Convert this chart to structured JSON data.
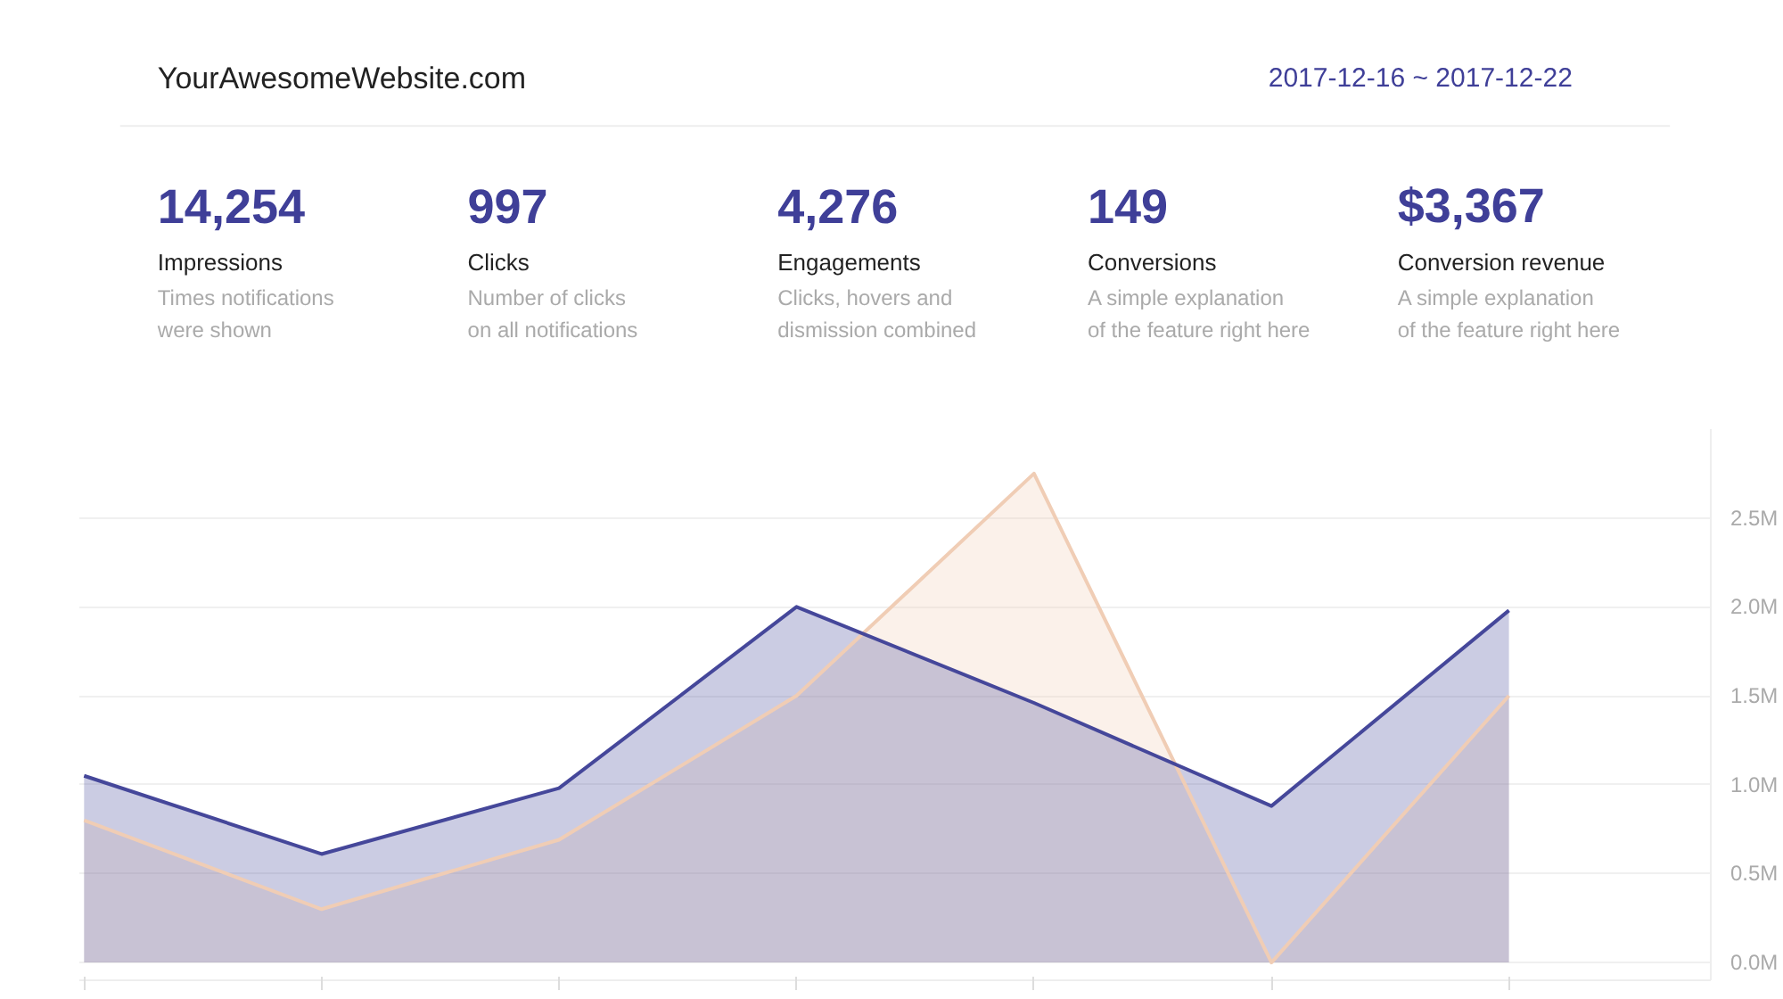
{
  "chart_data": [
    {
      "type": "other",
      "title": "YourAwesomeWebsite.com",
      "subtitle": "2017-12-16 ~ 2017-12-22",
      "annotations": [
        "14,254",
        "Impressions",
        "Times notifications\nwere shown",
        "997",
        "Clicks",
        "Number of clicks\non all notifications",
        "4,276",
        "Engagements",
        "Clicks, hovers and\ndismission combined",
        "149",
        "Conversions",
        "A simple explanation\nof the feature right here",
        "$3,367",
        "Conversion revenue",
        "A simple explanation\nof the feature right here"
      ]
    },
    {
      "type": "area",
      "categories": [
        null,
        null,
        null,
        null,
        null,
        null,
        null
      ],
      "series": [
        {
          "color": "#f0cdb5",
          "values": [
            0.8,
            0.3,
            0.69,
            1.5,
            2.75,
            0.0,
            1.5
          ]
        },
        {
          "color": "#45479a",
          "values": [
            1.05,
            0.61,
            0.98,
            2.0,
            1.46,
            0.88,
            1.98
          ]
        }
      ],
      "ylim": [
        -0.1,
        3.0
      ],
      "yticks": [
        {
          "value": 0,
          "label": "0.0M"
        },
        {
          "value": 0.5,
          "label": "0.5M"
        },
        {
          "value": 1,
          "label": "1.0M"
        },
        {
          "value": 1.5,
          "label": "1.5M"
        },
        {
          "value": 2,
          "label": "2.0M"
        },
        {
          "value": 2.5,
          "label": "2.5M"
        }
      ],
      "grid": "y",
      "tick_labels": "y"
    }
  ]
}
